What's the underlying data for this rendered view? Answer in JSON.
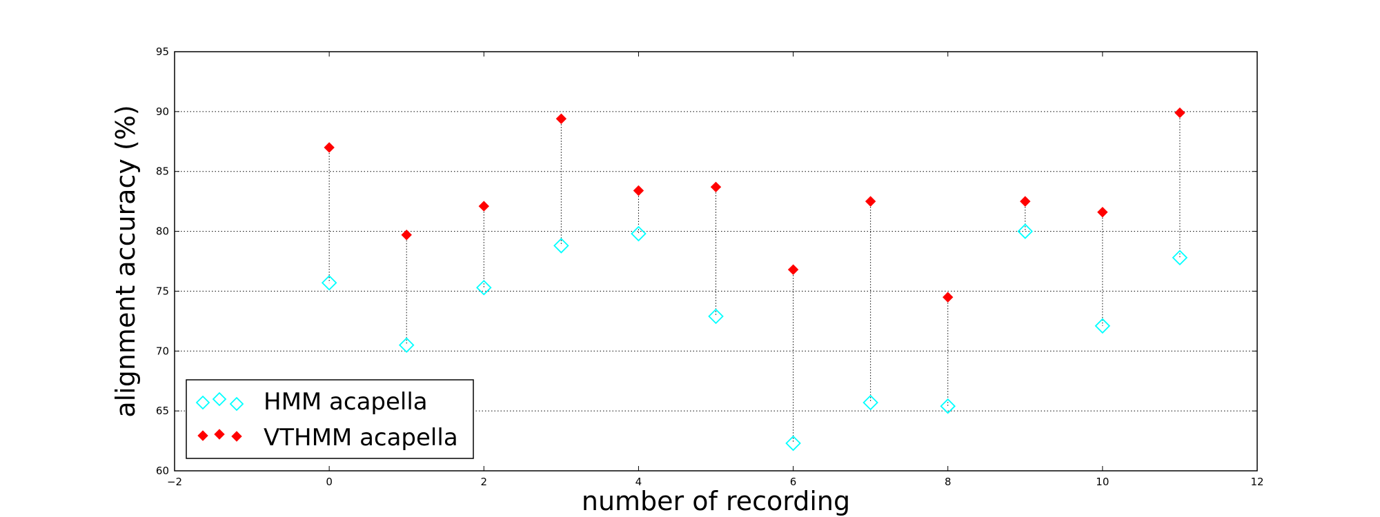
{
  "chart_data": {
    "type": "scatter",
    "title": "",
    "xlabel": "number of recording",
    "ylabel": "alignment accuracy (%)",
    "xlim": [
      -2,
      12
    ],
    "ylim": [
      60,
      95
    ],
    "xticks": [
      "−2",
      "0",
      "2",
      "4",
      "6",
      "8",
      "10",
      "12"
    ],
    "yticks": [
      "60",
      "65",
      "70",
      "75",
      "80",
      "85",
      "90",
      "95"
    ],
    "grid": "horizontal dotted",
    "legend_position": "lower-left",
    "x": [
      0,
      1,
      2,
      3,
      4,
      5,
      6,
      7,
      8,
      9,
      10,
      11
    ],
    "series": [
      {
        "name": "HMM acapella",
        "marker": "hollow-diamond",
        "color": "#00ffff",
        "values": [
          75.7,
          70.5,
          75.3,
          78.8,
          79.8,
          72.9,
          62.3,
          65.7,
          65.4,
          80.0,
          72.1,
          77.8
        ]
      },
      {
        "name": "VTHMM acapella",
        "marker": "filled-diamond",
        "color": "#ff0000",
        "values": [
          87.0,
          79.7,
          82.1,
          89.4,
          83.4,
          83.7,
          76.8,
          82.5,
          74.5,
          82.5,
          81.6,
          89.9
        ]
      }
    ]
  }
}
